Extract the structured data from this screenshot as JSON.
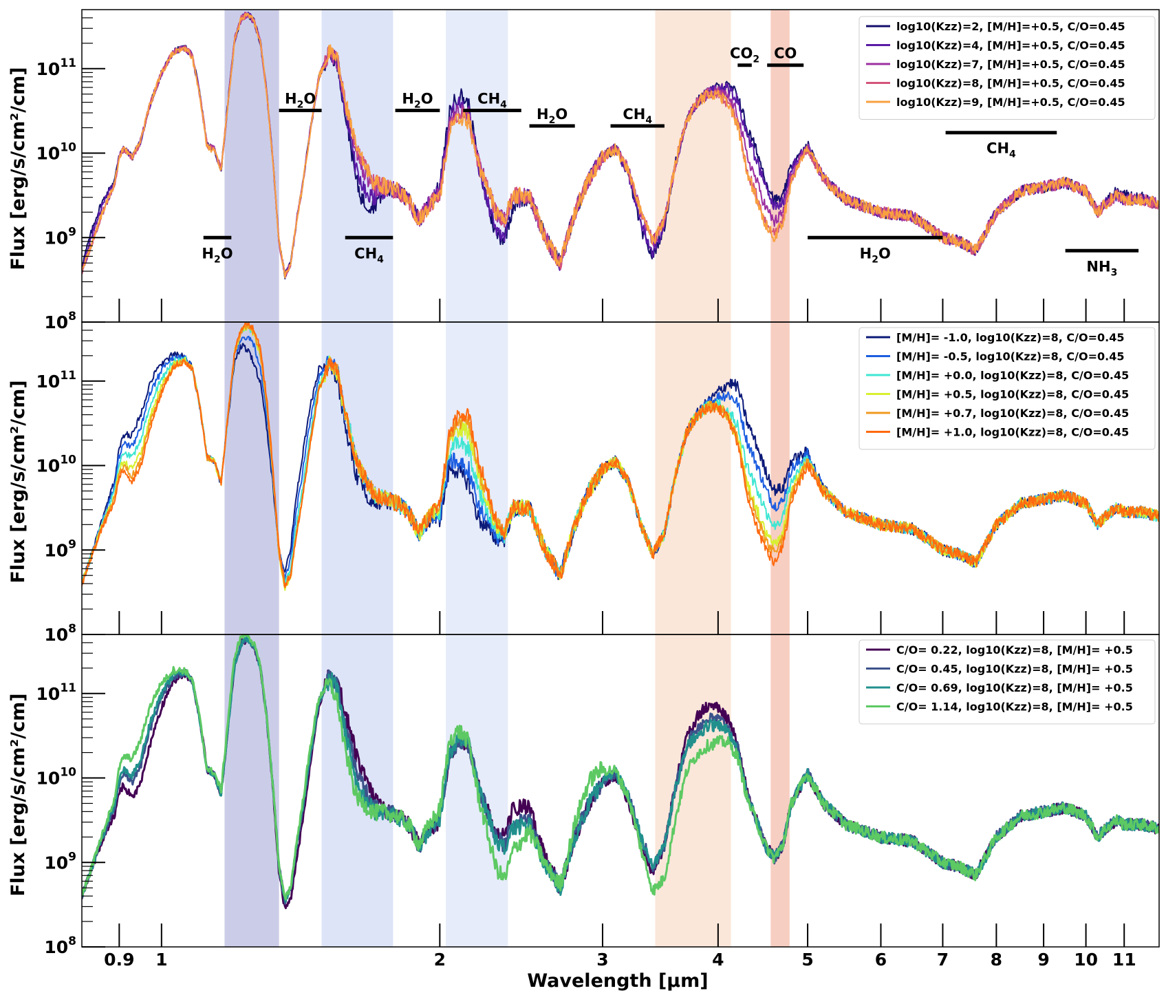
{
  "chart_data": {
    "type": "line",
    "x_scale": "log",
    "y_scale": "log",
    "xlim": [
      0.82,
      12.0
    ],
    "xlabel": "Wavelength [μm]",
    "x_ticks": [
      0.9,
      1,
      2,
      3,
      4,
      5,
      6,
      7,
      8,
      9,
      10,
      11
    ],
    "x_tick_labels": [
      "0.9",
      "1",
      "2",
      "3",
      "4",
      "5",
      "6",
      "7",
      "8",
      "9",
      "10",
      "11"
    ],
    "bands": [
      {
        "x0": 1.17,
        "x1": 1.34,
        "color": "#8c90cc",
        "alpha": 0.45
      },
      {
        "x0": 1.49,
        "x1": 1.78,
        "color": "#a9bcec",
        "alpha": 0.4
      },
      {
        "x0": 2.03,
        "x1": 2.37,
        "color": "#b8c8ee",
        "alpha": 0.35
      },
      {
        "x0": 3.42,
        "x1": 4.13,
        "color": "#f3c9ad",
        "alpha": 0.45
      },
      {
        "x0": 4.56,
        "x1": 4.78,
        "color": "#f09e86",
        "alpha": 0.5
      }
    ],
    "panels": [
      {
        "id": "kzz",
        "ylabel": "Flux [erg/s/cm²/cm]",
        "ylim": [
          100000000.0,
          500000000000.0
        ],
        "y_ticks": [
          100000000.0,
          1000000000.0,
          10000000000.0,
          100000000000.0
        ],
        "legend_position": "top-right",
        "series": [
          {
            "name": "log10(Kzz)=2, [M/H]=+0.5, C/O=0.45",
            "color": "#140e6b",
            "variant": "kzz2"
          },
          {
            "name": "log10(Kzz)=4, [M/H]=+0.5, C/O=0.45",
            "color": "#5a1aa6",
            "variant": "kzz4"
          },
          {
            "name": "log10(Kzz)=7, [M/H]=+0.5, C/O=0.45",
            "color": "#9c2fa0",
            "variant": "kzz7"
          },
          {
            "name": "log10(Kzz)=8, [M/H]=+0.5, C/O=0.45",
            "color": "#d4547a",
            "variant": "kzz8"
          },
          {
            "name": "log10(Kzz)=9, [M/H]=+0.5, C/O=0.45",
            "color": "#f8a040",
            "variant": "kzz9"
          }
        ],
        "annotations": [
          {
            "label": "H2O",
            "x0": 1.11,
            "x1": 1.19,
            "y": 1000000000.0,
            "label_side": "below"
          },
          {
            "label": "H2O",
            "x0": 1.34,
            "x1": 1.49,
            "y": 32000000000.0,
            "label_side": "above"
          },
          {
            "label": "CH4",
            "x0": 1.58,
            "x1": 1.78,
            "y": 1000000000.0,
            "label_side": "below"
          },
          {
            "label": "H2O",
            "x0": 1.79,
            "x1": 2.0,
            "y": 32000000000.0,
            "label_side": "above"
          },
          {
            "label": "CH4",
            "x0": 2.12,
            "x1": 2.45,
            "y": 32000000000.0,
            "label_side": "above"
          },
          {
            "label": "H2O",
            "x0": 2.5,
            "x1": 2.8,
            "y": 21000000000.0,
            "label_side": "above"
          },
          {
            "label": "CH4",
            "x0": 3.06,
            "x1": 3.5,
            "y": 21000000000.0,
            "label_side": "above"
          },
          {
            "label": "CO2",
            "x0": 4.2,
            "x1": 4.35,
            "y": 110000000000.0,
            "label_side": "above"
          },
          {
            "label": "CO",
            "x0": 4.52,
            "x1": 4.95,
            "y": 110000000000.0,
            "label_side": "above"
          },
          {
            "label": "H2O",
            "x0": 5.0,
            "x1": 7.0,
            "y": 1000000000.0,
            "label_side": "below"
          },
          {
            "label": "CH4",
            "x0": 7.05,
            "x1": 9.3,
            "y": 17500000000.0,
            "label_side": "below"
          },
          {
            "label": "NH3",
            "x0": 9.5,
            "x1": 11.4,
            "y": 700000000.0,
            "label_side": "below"
          }
        ]
      },
      {
        "id": "metallicity",
        "ylabel": "Flux [erg/s/cm²/cm]",
        "ylim": [
          100000000.0,
          500000000000.0
        ],
        "y_ticks": [
          100000000.0,
          1000000000.0,
          10000000000.0,
          100000000000.0
        ],
        "legend_position": "top-right",
        "series": [
          {
            "name": "[M/H]= -1.0, log10(Kzz)=8, C/O=0.45",
            "color": "#0c1a78",
            "variant": "mh-1.0"
          },
          {
            "name": "[M/H]= -0.5, log10(Kzz)=8, C/O=0.45",
            "color": "#1c5de0",
            "variant": "mh-0.5"
          },
          {
            "name": "[M/H]= +0.0, log10(Kzz)=8, C/O=0.45",
            "color": "#3fe6d2",
            "variant": "mh+0.0"
          },
          {
            "name": "[M/H]= +0.5, log10(Kzz)=8, C/O=0.45",
            "color": "#d8f030",
            "variant": "mh+0.5"
          },
          {
            "name": "[M/H]= +0.7, log10(Kzz)=8, C/O=0.45",
            "color": "#f09a20",
            "variant": "mh+0.7"
          },
          {
            "name": "[M/H]= +1.0, log10(Kzz)=8, C/O=0.45",
            "color": "#ff6a10",
            "variant": "mh+1.0"
          }
        ],
        "annotations": []
      },
      {
        "id": "co",
        "ylabel": "Flux [erg/s/cm²/cm]",
        "ylim": [
          100000000.0,
          500000000000.0
        ],
        "y_ticks": [
          100000000.0,
          1000000000.0,
          10000000000.0,
          100000000000.0
        ],
        "legend_position": "top-right",
        "series": [
          {
            "name": "C/O= 0.22, log10(Kzz)=8, [M/H]= +0.5",
            "color": "#440154",
            "variant": "co0.22"
          },
          {
            "name": "C/O= 0.45, log10(Kzz)=8, [M/H]= +0.5",
            "color": "#3b528b",
            "variant": "co0.45"
          },
          {
            "name": "C/O= 0.69, log10(Kzz)=8, [M/H]= +0.5",
            "color": "#21908d",
            "variant": "co0.69"
          },
          {
            "name": "C/O= 1.14, log10(Kzz)=8, [M/H]= +0.5",
            "color": "#5dc963",
            "variant": "co1.14"
          }
        ],
        "annotations": []
      }
    ],
    "base_spectrum": {
      "x_um": [
        0.82,
        0.86,
        0.89,
        0.9,
        0.91,
        0.93,
        0.95,
        0.97,
        1.0,
        1.03,
        1.06,
        1.08,
        1.1,
        1.12,
        1.14,
        1.16,
        1.18,
        1.2,
        1.22,
        1.24,
        1.26,
        1.28,
        1.3,
        1.32,
        1.34,
        1.36,
        1.38,
        1.4,
        1.42,
        1.45,
        1.48,
        1.52,
        1.55,
        1.58,
        1.6,
        1.62,
        1.65,
        1.7,
        1.75,
        1.8,
        1.85,
        1.9,
        1.95,
        2.0,
        2.05,
        2.1,
        2.15,
        2.2,
        2.25,
        2.3,
        2.35,
        2.4,
        2.5,
        2.6,
        2.7,
        2.8,
        2.9,
        3.0,
        3.1,
        3.2,
        3.3,
        3.4,
        3.5,
        3.6,
        3.7,
        3.8,
        3.9,
        4.0,
        4.1,
        4.2,
        4.3,
        4.4,
        4.5,
        4.6,
        4.7,
        4.8,
        5.0,
        5.2,
        5.5,
        6.0,
        6.5,
        7.0,
        7.3,
        7.6,
        8.0,
        8.5,
        9.0,
        9.5,
        10.0,
        10.3,
        10.5,
        10.8,
        11.0,
        11.5,
        12.0
      ],
      "log10_flux": [
        8.6,
        9.25,
        9.65,
        9.95,
        10.05,
        9.95,
        10.15,
        10.55,
        10.95,
        11.2,
        11.25,
        11.15,
        10.7,
        10.1,
        10.05,
        9.8,
        10.6,
        11.35,
        11.6,
        11.65,
        11.55,
        11.3,
        10.7,
        9.9,
        8.95,
        8.55,
        8.7,
        9.2,
        9.6,
        10.3,
        10.9,
        11.2,
        11.1,
        10.6,
        10.4,
        10.1,
        9.9,
        9.65,
        9.6,
        9.55,
        9.45,
        9.2,
        9.4,
        9.5,
        10.3,
        10.45,
        10.4,
        9.9,
        9.6,
        9.3,
        9.2,
        9.5,
        9.5,
        9.0,
        8.7,
        9.3,
        9.7,
        9.95,
        10.05,
        9.8,
        9.3,
        8.95,
        9.2,
        9.9,
        10.4,
        10.6,
        10.7,
        10.7,
        10.6,
        10.35,
        9.8,
        9.5,
        9.2,
        9.05,
        9.2,
        9.7,
        10.05,
        9.7,
        9.45,
        9.3,
        9.25,
        9.0,
        8.95,
        8.85,
        9.3,
        9.55,
        9.6,
        9.65,
        9.55,
        9.3,
        9.4,
        9.5,
        9.45,
        9.45,
        9.4
      ]
    }
  }
}
